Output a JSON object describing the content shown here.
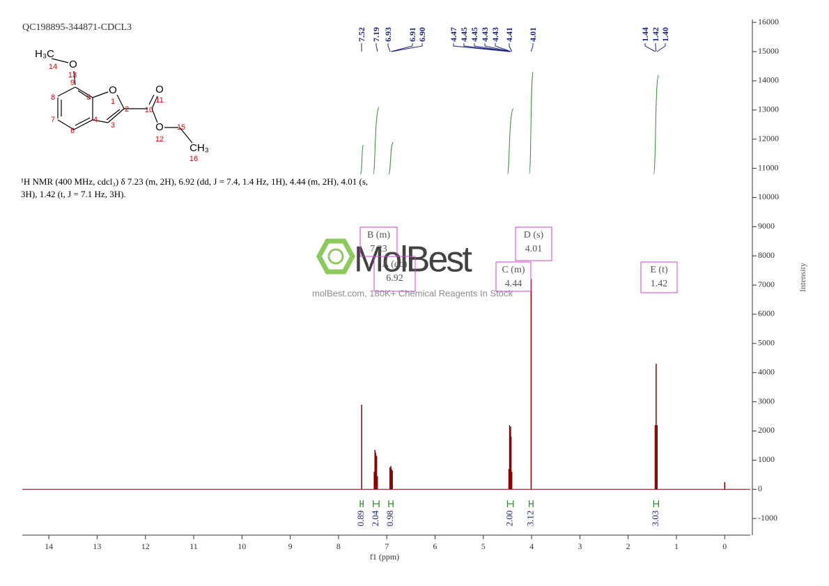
{
  "sample_id": "QC198895-344871-CDCL3",
  "description": [
    "¹H NMR (400 MHz, cdcl₃) δ 7.23 (m, 2H), 6.92 (dd, J = 7.4, 1.4 Hz, 1H), 4.44 (m, 2H), 4.01 (s,",
    "3H), 1.42 (t, J = 7.1 Hz, 3H)."
  ],
  "structure": {
    "labels": [
      "H₃C",
      "14",
      "O",
      "13",
      "9",
      "8",
      "5",
      "O",
      "1",
      "2",
      "10",
      "O",
      "11",
      "7",
      "4",
      "3",
      "O",
      "12",
      "15",
      "6",
      "CH₃",
      "16"
    ]
  },
  "watermark": {
    "brand": "MolBest",
    "tagline": "molBest.com, 180K+ Chemical Reagents In Stock"
  },
  "chart_data": {
    "type": "nmr",
    "xlabel": "f1 (ppm)",
    "ylabel": "Intensity",
    "xlim": [
      14.55,
      -0.53
    ],
    "ylim": [
      -1570,
      16100
    ],
    "xticks": [
      14,
      13,
      12,
      11,
      10,
      9,
      8,
      7,
      6,
      5,
      4,
      3,
      2,
      1,
      0
    ],
    "yticks": [
      16000,
      15000,
      14000,
      13000,
      12000,
      11000,
      10000,
      9000,
      8000,
      7000,
      6000,
      5000,
      4000,
      3000,
      2000,
      1000,
      0,
      -1000
    ],
    "series": [
      {
        "name": "spectrum",
        "color": "#8b0000",
        "x": [
          7.52,
          7.26,
          7.245,
          7.23,
          7.21,
          7.195,
          6.935,
          6.915,
          6.905,
          6.885,
          4.47,
          4.455,
          4.445,
          4.435,
          4.425,
          4.41,
          4.01,
          1.44,
          1.42,
          1.4,
          0
        ],
        "values": [
          2900,
          600,
          1350,
          1250,
          1150,
          450,
          750,
          800,
          700,
          650,
          700,
          2200,
          1900,
          2150,
          1800,
          600,
          7200,
          2200,
          4300,
          2200,
          250
        ]
      }
    ],
    "peak_labels": [
      7.52,
      7.19,
      6.93,
      6.91,
      {
        "value": 6.9,
        "label": "6.90"
      },
      4.47,
      4.45,
      4.45,
      4.43,
      4.43,
      4.41,
      4.01,
      1.44,
      1.42,
      {
        "value": 1.4,
        "label": "1.40"
      }
    ],
    "multiplets": [
      {
        "label": "B (m)",
        "value": 7.23
      },
      {
        "label": "A (dd)",
        "value": 6.92
      },
      {
        "label": "C (m)",
        "value": 4.44
      },
      {
        "label": "D (s)",
        "value": 4.01
      },
      {
        "label": "E (t)",
        "value": 1.42
      }
    ],
    "integrals": {
      "ranges": [
        [
          7.55,
          7.49
        ],
        [
          7.28,
          7.16
        ],
        [
          6.96,
          6.87
        ],
        [
          4.5,
          4.38
        ],
        [
          4.05,
          3.97
        ],
        [
          1.47,
          1.37
        ]
      ],
      "values": [
        0.89,
        2.04,
        0.98,
        2,
        3.12,
        3.03
      ],
      "value_labels": [
        "0.89",
        "2.04",
        "0.98",
        "2.00",
        "3.12",
        "3.03"
      ],
      "color": "#2e8b2e"
    }
  }
}
